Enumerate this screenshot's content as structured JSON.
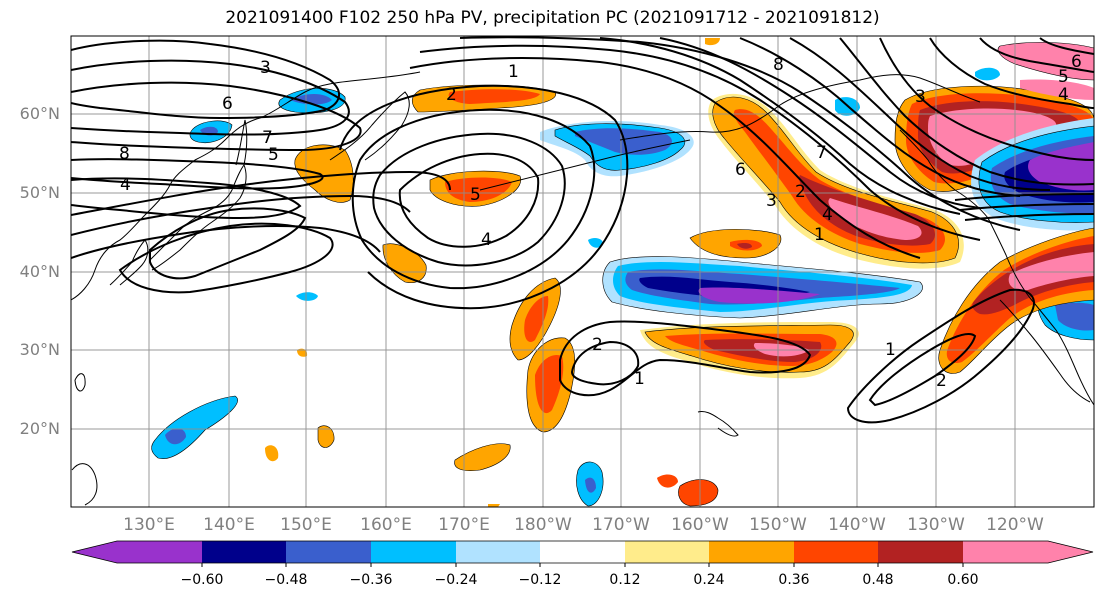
{
  "title": "2021091400 F102 250 hPa PV, precipitation PC (2021091712 - 2021091812)",
  "lat_labels": [
    "60°N",
    "50°N",
    "40°N",
    "30°N",
    "20°N"
  ],
  "lon_labels": [
    "130°E",
    "140°E",
    "150°E",
    "160°E",
    "170°E",
    "180°W",
    "170°W",
    "160°W",
    "150°W",
    "140°W",
    "130°W",
    "120°W"
  ],
  "colorbar": {
    "colors": [
      "#9932cc",
      "#00008b",
      "#3a5fcd",
      "#00bfff",
      "#b0e2ff",
      "#ffffff",
      "#ffec8b",
      "#ffa500",
      "#ff4500",
      "#b22222",
      "#ff82ab"
    ],
    "tick_labels": [
      "−0.60",
      "−0.48",
      "−0.36",
      "−0.24",
      "−0.12",
      "0.12",
      "0.24",
      "0.36",
      "0.48",
      "0.60"
    ]
  },
  "contour_labels": {
    "c3_nw": "3",
    "c6_nw": "6",
    "c7_nw": "7",
    "c8_w": "8",
    "c5_w": "5",
    "c4_w": "4",
    "c2_np": "2",
    "c1_np": "1",
    "c5_mid": "5",
    "c4_mid": "4",
    "c8_gulf": "8",
    "c7_gulf": "7",
    "c6_e": "6",
    "c3_e": "3",
    "c2_e": "2",
    "c4_e": "4",
    "c1_e": "1",
    "c3_ak": "3",
    "c6_ne": "6",
    "c5_ne": "5",
    "c4_ne": "4",
    "c2_sub": "2",
    "c1_sub": "1",
    "c1_se": "1",
    "c2_se": "2"
  }
}
